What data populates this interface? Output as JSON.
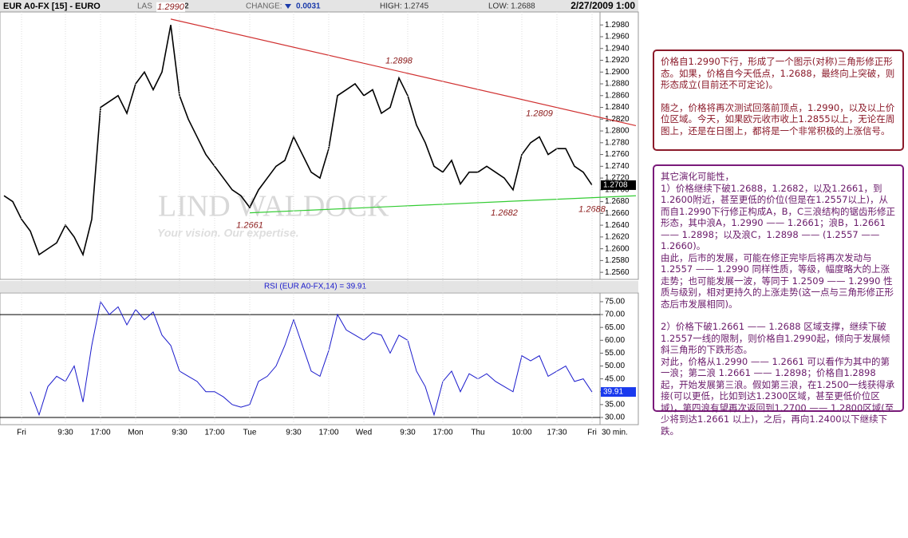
{
  "header": {
    "symbol": "EUR A0-FX [15] - EURO",
    "last_label": "LAS",
    "last_value": "2",
    "change_label": "CHANGE:",
    "change_value": "0.0031",
    "high": "HIGH: 1.2745",
    "low": "LOW: 1.2688",
    "datetime": "2/27/2009 1:00"
  },
  "watermark": {
    "brand": "LIND  WALDOCK",
    "slogan": "Your vision. Our expertise."
  },
  "chart_data": [
    {
      "type": "line",
      "color": "#000000",
      "values": [
        1.269,
        1.268,
        1.265,
        1.263,
        1.259,
        1.26,
        1.261,
        1.264,
        1.262,
        1.259,
        1.265,
        1.284,
        1.285,
        1.286,
        1.283,
        1.288,
        1.29,
        1.287,
        1.29,
        1.298,
        1.286,
        1.282,
        1.279,
        1.276,
        1.274,
        1.272,
        1.27,
        1.269,
        1.267,
        1.27,
        1.272,
        1.274,
        1.275,
        1.279,
        1.276,
        1.273,
        1.272,
        1.277,
        1.286,
        1.287,
        1.288,
        1.286,
        1.287,
        1.283,
        1.284,
        1.289,
        1.286,
        1.281,
        1.278,
        1.274,
        1.273,
        1.275,
        1.271,
        1.273,
        1.273,
        1.274,
        1.273,
        1.272,
        1.27,
        1.276,
        1.278,
        1.279,
        1.276,
        1.277,
        1.277,
        1.274,
        1.273,
        1.2708
      ],
      "ylim": [
        1.2548,
        1.3002
      ],
      "yticks": [
        {
          "value": 1.256,
          "label": "1.2560"
        },
        {
          "value": 1.258,
          "label": "1.2580"
        },
        {
          "value": 1.26,
          "label": "1.2600"
        },
        {
          "value": 1.262,
          "label": "1.2620"
        },
        {
          "value": 1.264,
          "label": "1.2640"
        },
        {
          "value": 1.266,
          "label": "1.2660"
        },
        {
          "value": 1.268,
          "label": "1.2680"
        },
        {
          "value": 1.27,
          "label": "1.2700"
        },
        {
          "value": 1.272,
          "label": "1.2720"
        },
        {
          "value": 1.274,
          "label": "1.2740"
        },
        {
          "value": 1.276,
          "label": "1.2760"
        },
        {
          "value": 1.278,
          "label": "1.2780"
        },
        {
          "value": 1.28,
          "label": "1.2800"
        },
        {
          "value": 1.282,
          "label": "1.2820"
        },
        {
          "value": 1.284,
          "label": "1.2840"
        },
        {
          "value": 1.286,
          "label": "1.2860"
        },
        {
          "value": 1.288,
          "label": "1.2880"
        },
        {
          "value": 1.29,
          "label": "1.2900"
        },
        {
          "value": 1.292,
          "label": "1.2920"
        },
        {
          "value": 1.294,
          "label": "1.2940"
        },
        {
          "value": 1.296,
          "label": "1.2960"
        },
        {
          "value": 1.298,
          "label": "1.2980"
        }
      ],
      "trendlines": [
        {
          "color": "#d03030",
          "points": [
            [
              19,
              1.299
            ],
            [
              72,
              1.2809
            ]
          ]
        },
        {
          "color": "#33cc33",
          "points": [
            [
              28,
              1.2661
            ],
            [
              72,
              1.269
            ]
          ]
        }
      ],
      "annotations": [
        {
          "text": "1.2990",
          "index": 19,
          "value": 1.299,
          "side": "above"
        },
        {
          "text": "1.2898",
          "index": 45,
          "value": 1.2898,
          "side": "above"
        },
        {
          "text": "1.2809",
          "index": 61,
          "value": 1.2809,
          "side": "above"
        },
        {
          "text": "1.2661",
          "index": 28,
          "value": 1.2661,
          "side": "below"
        },
        {
          "text": "1.2682",
          "index": 57,
          "value": 1.2682,
          "side": "below"
        },
        {
          "text": "1.2688",
          "index": 67,
          "value": 1.2688,
          "side": "below"
        }
      ]
    },
    {
      "type": "line",
      "title": "RSI (EUR A0-FX,14) = 39.91",
      "color": "#1a1acc",
      "categories": [
        null,
        null,
        "Fri",
        null,
        null,
        null,
        null,
        "9:30",
        null,
        null,
        null,
        "17:00",
        null,
        null,
        null,
        "Mon",
        null,
        null,
        null,
        null,
        "9:30",
        null,
        null,
        null,
        "17:00",
        null,
        null,
        null,
        "Tue",
        null,
        null,
        null,
        null,
        "9:30",
        null,
        null,
        null,
        "17:00",
        null,
        null,
        null,
        "Wed",
        null,
        null,
        null,
        null,
        "9:30",
        null,
        null,
        null,
        "17:00",
        null,
        null,
        null,
        "Thu",
        null,
        null,
        null,
        null,
        "10:00",
        null,
        null,
        null,
        "17:30",
        null,
        null,
        null,
        "Fri"
      ],
      "x_unit": "30 min.",
      "values": [
        null,
        null,
        null,
        40,
        31,
        42,
        46,
        44,
        50,
        36,
        58,
        75,
        70,
        73,
        66,
        72,
        68,
        71,
        62,
        58,
        48,
        46,
        44,
        40,
        40,
        38,
        35,
        34,
        35,
        44,
        46,
        50,
        58,
        68,
        58,
        48,
        46,
        56,
        70,
        64,
        62,
        60,
        63,
        62,
        55,
        62,
        60,
        48,
        42,
        31,
        44,
        48,
        40,
        47,
        45,
        47,
        44,
        42,
        40,
        54,
        52,
        54,
        46,
        48,
        50,
        44,
        45,
        39.91
      ],
      "ylim": [
        27.2,
        78.4
      ],
      "yticks": [
        {
          "value": 30,
          "label": "30.00"
        },
        {
          "value": 35,
          "label": "35.00"
        },
        {
          "value": 40,
          "label": "40.00"
        },
        {
          "value": 45,
          "label": "45.00"
        },
        {
          "value": 50,
          "label": "50.00"
        },
        {
          "value": 55,
          "label": "55.00"
        },
        {
          "value": 60,
          "label": "60.00"
        },
        {
          "value": 65,
          "label": "65.00"
        },
        {
          "value": 70,
          "label": "70.00"
        },
        {
          "value": 75,
          "label": "75.00"
        }
      ],
      "reference_lines": [
        30,
        70
      ]
    }
  ],
  "notes": [
    {
      "paragraphs": [
        "价格自1.2990下行，形成了一个图示(对称)三角形修正形态。如果，价格自今天低点，1.2688，最终向上突破，则形态成立(目前还不可定论)。",
        "随之，价格将再次测试回落前顶点，1.2990，以及以上价位区域。今天，如果欧元收市收上1.2855以上，无论在周图上，还是在日图上，都将是一个非常积极的上涨信号。"
      ]
    },
    {
      "paragraphs": [
        "其它演化可能性，",
        "1）价格继续下破1.2688，1.2682，以及1.2661，到1.2600附近，甚至更低的价位(但是在1.2557以上)，从而自1.2990下行修正构成A，B，C三浪结构的锯齿形修正形态，其中浪A，1.2990 —— 1.2661；浪B，1.2661 —— 1.2898；以及浪C，1.2898 —— (1.2557 —— 1.2660)。",
        "由此，后市的发展，可能在修正完毕后将再次发动与1.2557 —— 1.2990 同样性质，等级，幅度略大的上涨走势；也可能发展一波，等同于 1.2509 —— 1.2990 性质与级别，相对更持久的上涨走势(这一点与三角形修正形态后市发展相同)。",
        "2）价格下破1.2661 —— 1.2688 区域支撑，继续下破1.2557一线的限制，则价格自1.2990起，倾向于发展倾斜三角形的下跌形态。",
        "对此，价格从1.2990 —— 1.2661 可以看作为其中的第一浪；第二浪 1.2661 —— 1.2898；价格自1.2898 起，开始发展第三浪。假如第三浪，在1.2500一线获得承接(可以更低，比如到达1.2300区域，甚至更低价位区域)，第四浪有望再次返回到1.2700 —— 1.2800区域(至少将到达1.2661 以上)，之后，再向1.2400以下继续下跌。"
      ]
    }
  ]
}
